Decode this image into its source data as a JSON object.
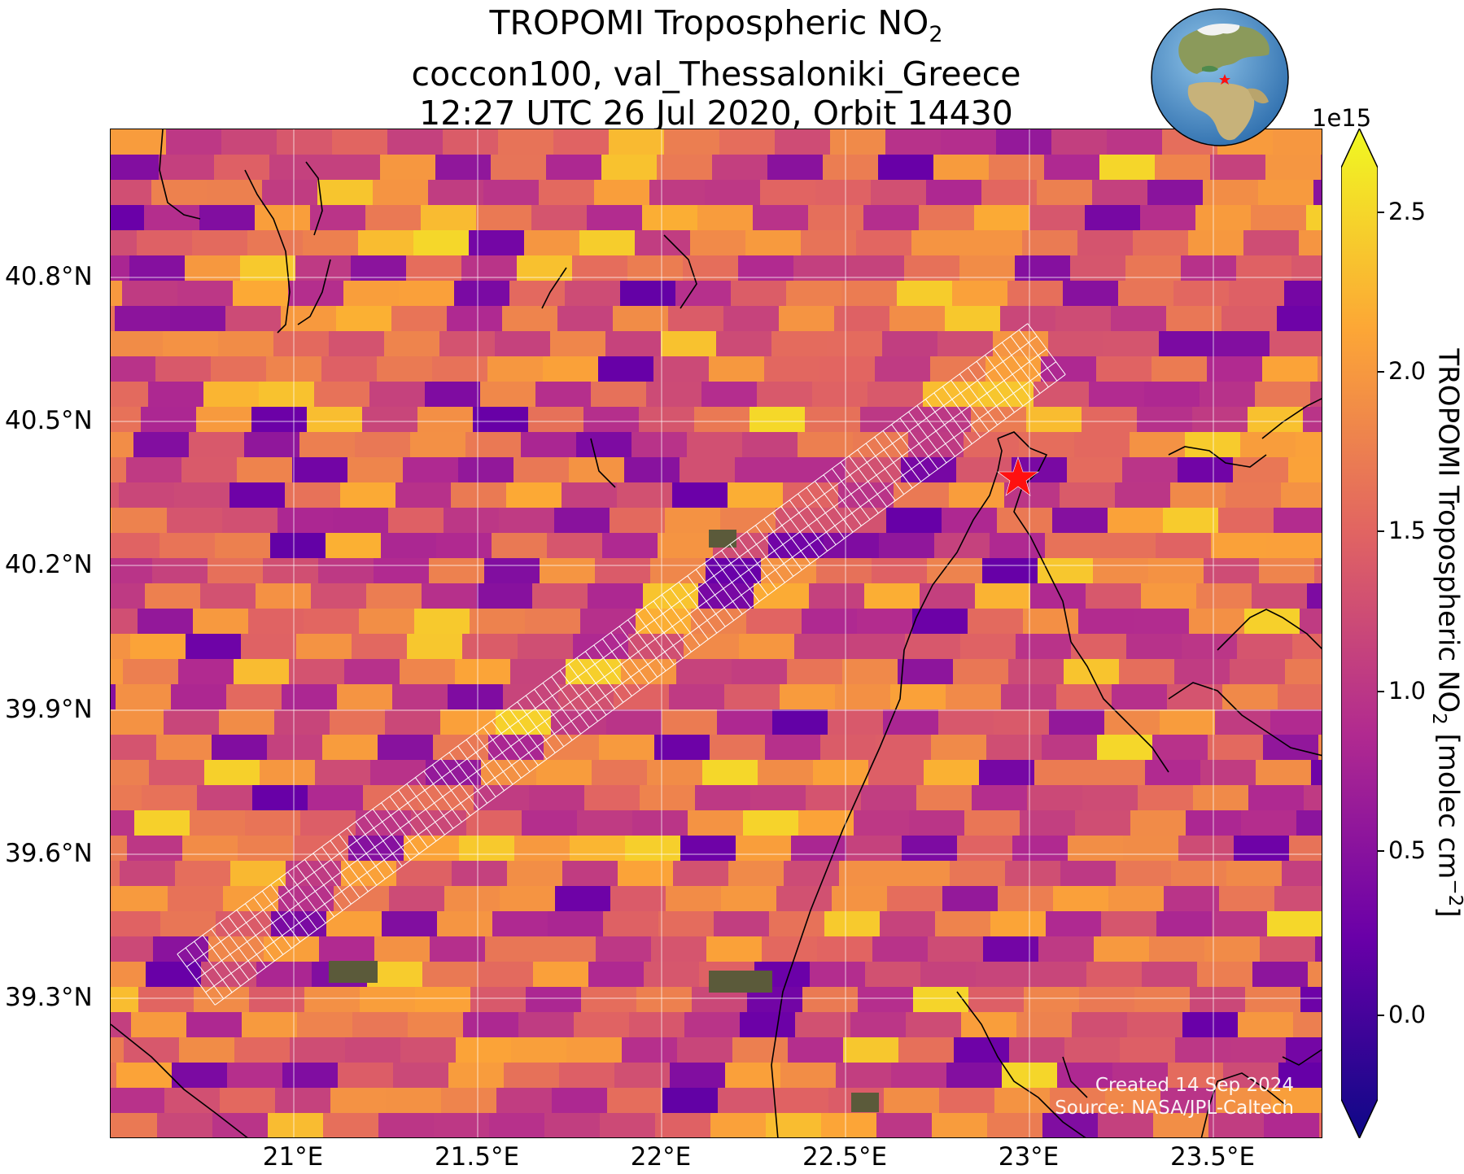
{
  "title": {
    "line1_prefix": "TROPOMI Tropospheric NO",
    "line1_sub": "2",
    "line2": "coccon100, val_Thessaloniki_Greece",
    "line3": "12:27 UTC 26 Jul 2020, Orbit 14430"
  },
  "map": {
    "lat_labels": [
      "40.8°N",
      "40.5°N",
      "40.2°N",
      "39.9°N",
      "39.6°N",
      "39.3°N"
    ],
    "lon_labels": [
      "21°E",
      "21.5°E",
      "22°E",
      "22.5°E",
      "23°E",
      "23.5°E"
    ],
    "site_marker": "star-icon",
    "site_marker_color": "#ff0000",
    "credits": {
      "line1": "Created 14 Sep 2024",
      "line2": "Source: NASA/JPL-Caltech"
    },
    "inset": "globe-locator"
  },
  "colorbar": {
    "exponent": "1e15",
    "ticks": [
      "2.5",
      "2.0",
      "1.5",
      "1.0",
      "0.5",
      "0.0"
    ],
    "label_prefix": "TROPOMI Tropospheric NO",
    "label_sub": "2",
    "label_suffix": " [molec cm",
    "label_sup": "−2",
    "label_end": "]",
    "colormap": "plasma",
    "colors": [
      "#0d0887",
      "#6a00a8",
      "#b12a90",
      "#e16462",
      "#fca636",
      "#f0f921"
    ]
  }
}
